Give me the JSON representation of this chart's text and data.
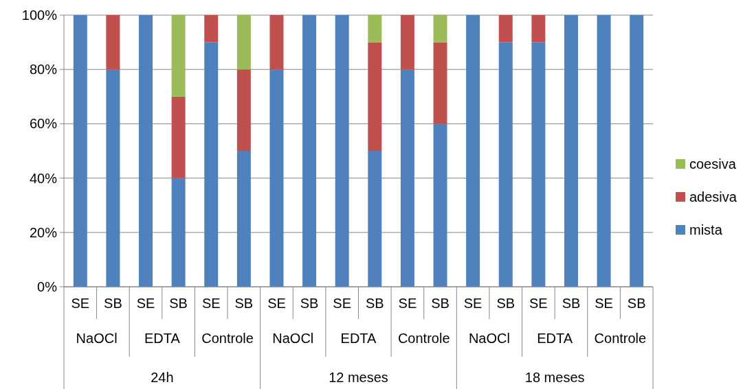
{
  "chart_data": {
    "type": "bar",
    "stacked": true,
    "categories": [
      "SE",
      "SB",
      "SE",
      "SB",
      "SE",
      "SB",
      "SE",
      "SB",
      "SE",
      "SB",
      "SE",
      "SB",
      "SE",
      "SB",
      "SE",
      "SB",
      "SE",
      "SB"
    ],
    "annotations": [
      "NaOCl",
      "EDTA",
      "Controle",
      "NaOCl",
      "EDTA",
      "Controle",
      "NaOCl",
      "EDTA",
      "Controle",
      "24h",
      "12 meses",
      "18 meses"
    ],
    "series": [
      {
        "name": "mista",
        "color": "#4f81bd",
        "values": [
          100,
          80,
          100,
          40,
          90,
          50,
          80,
          100,
          100,
          50,
          80,
          60,
          100,
          90,
          90,
          100,
          100,
          100
        ]
      },
      {
        "name": "adesiva",
        "color": "#c0504d",
        "values": [
          0,
          20,
          0,
          30,
          10,
          30,
          20,
          0,
          0,
          40,
          20,
          30,
          0,
          10,
          10,
          0,
          0,
          0
        ]
      },
      {
        "name": "coesiva",
        "color": "#9bbb59",
        "values": [
          0,
          0,
          0,
          30,
          0,
          20,
          0,
          0,
          0,
          10,
          0,
          10,
          0,
          0,
          0,
          0,
          0,
          0
        ]
      }
    ],
    "ylim": [
      0,
      100
    ],
    "yticks": [
      {
        "value": 0,
        "label": "0%"
      },
      {
        "value": 20,
        "label": "20%"
      },
      {
        "value": 40,
        "label": "40%"
      },
      {
        "value": 60,
        "label": "60%"
      },
      {
        "value": 80,
        "label": "80%"
      },
      {
        "value": 100,
        "label": "100%"
      }
    ],
    "grid": "y",
    "legend": "right"
  }
}
